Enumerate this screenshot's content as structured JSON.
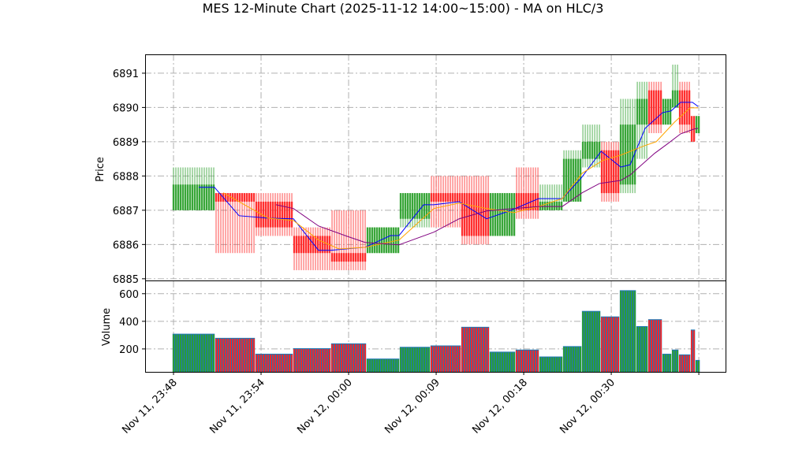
{
  "chart_data": {
    "type": "candlestick",
    "title": "MES 12-Minute Chart (2025-11-12 14:00~15:00) - MA on HLC/3",
    "ylabel": "Price",
    "volume_ylabel": "Volume",
    "xlabel": "",
    "x_axis": "bar index",
    "xlim": [
      -12,
      233.3
    ],
    "ylim": [
      6884.95,
      6891.55
    ],
    "volume_ylim": [
      34,
      690
    ],
    "grid": true,
    "x_ticks": [
      {
        "index": 0,
        "label": "Nov 11, 23:48"
      },
      {
        "index": 37,
        "label": "Nov 11, 23:54"
      },
      {
        "index": 74,
        "label": "Nov 12, 00:00"
      },
      {
        "index": 111,
        "label": "Nov 12, 00:09"
      },
      {
        "index": 148,
        "label": "Nov 12, 00:18"
      },
      {
        "index": 185,
        "label": "Nov 12, 00:30"
      },
      {
        "index": 222,
        "label": ""
      }
    ],
    "y_ticks": [
      6885,
      6886,
      6887,
      6888,
      6889,
      6890,
      6891
    ],
    "volume_ticks": [
      200,
      400,
      600
    ],
    "colors": {
      "up": "#2ca02c",
      "down": "#ff2222",
      "volume_base": "#1f77b4",
      "ma_fast": "#0000ff",
      "ma_mid": "#ffa500",
      "ma_slow": "#800080"
    },
    "candles": [
      {
        "start": 0,
        "end": 17,
        "o": 6887.0,
        "h": 6888.25,
        "l": 6887.0,
        "c": 6887.75,
        "v": 310
      },
      {
        "start": 18,
        "end": 34,
        "o": 6887.5,
        "h": 6887.5,
        "l": 6885.75,
        "c": 6887.25,
        "v": 280
      },
      {
        "start": 35,
        "end": 50,
        "o": 6887.25,
        "h": 6887.5,
        "l": 6886.25,
        "c": 6886.5,
        "v": 165
      },
      {
        "start": 51,
        "end": 66,
        "o": 6886.25,
        "h": 6886.5,
        "l": 6885.25,
        "c": 6885.75,
        "v": 205
      },
      {
        "start": 67,
        "end": 81,
        "o": 6885.75,
        "h": 6887.0,
        "l": 6885.25,
        "c": 6885.5,
        "v": 240
      },
      {
        "start": 82,
        "end": 95,
        "o": 6885.75,
        "h": 6886.5,
        "l": 6885.75,
        "c": 6886.5,
        "v": 130
      },
      {
        "start": 96,
        "end": 108,
        "o": 6886.75,
        "h": 6887.5,
        "l": 6886.5,
        "c": 6887.5,
        "v": 215
      },
      {
        "start": 109,
        "end": 121,
        "o": 6887.5,
        "h": 6888.0,
        "l": 6886.5,
        "c": 6887.25,
        "v": 225
      },
      {
        "start": 122,
        "end": 133,
        "o": 6887.5,
        "h": 6888.0,
        "l": 6886.0,
        "c": 6886.25,
        "v": 360
      },
      {
        "start": 134,
        "end": 144,
        "o": 6886.25,
        "h": 6887.5,
        "l": 6886.25,
        "c": 6887.5,
        "v": 180
      },
      {
        "start": 145,
        "end": 154,
        "o": 6887.5,
        "h": 6888.25,
        "l": 6886.75,
        "c": 6887.0,
        "v": 195
      },
      {
        "start": 155,
        "end": 164,
        "o": 6887.0,
        "h": 6887.75,
        "l": 6887.0,
        "c": 6887.25,
        "v": 145
      },
      {
        "start": 165,
        "end": 172,
        "o": 6887.25,
        "h": 6888.75,
        "l": 6887.25,
        "c": 6888.5,
        "v": 220
      },
      {
        "start": 173,
        "end": 180,
        "o": 6888.5,
        "h": 6889.5,
        "l": 6888.25,
        "c": 6889.0,
        "v": 475
      },
      {
        "start": 181,
        "end": 188,
        "o": 6888.75,
        "h": 6889.0,
        "l": 6887.25,
        "c": 6887.5,
        "v": 435
      },
      {
        "start": 189,
        "end": 195,
        "o": 6887.75,
        "h": 6890.25,
        "l": 6887.5,
        "c": 6889.5,
        "v": 625
      },
      {
        "start": 196,
        "end": 200,
        "o": 6889.5,
        "h": 6890.75,
        "l": 6888.5,
        "c": 6890.25,
        "v": 365
      },
      {
        "start": 201,
        "end": 206,
        "o": 6890.5,
        "h": 6890.75,
        "l": 6889.25,
        "c": 6889.5,
        "v": 415
      },
      {
        "start": 207,
        "end": 210,
        "o": 6889.5,
        "h": 6890.25,
        "l": 6889.5,
        "c": 6890.25,
        "v": 165
      },
      {
        "start": 211,
        "end": 213,
        "o": 6890.0,
        "h": 6891.25,
        "l": 6890.0,
        "c": 6890.5,
        "v": 195
      },
      {
        "start": 214,
        "end": 218,
        "o": 6890.5,
        "h": 6890.75,
        "l": 6889.25,
        "c": 6889.5,
        "v": 160
      },
      {
        "start": 219,
        "end": 220,
        "o": 6889.75,
        "h": 6889.75,
        "l": 6889.0,
        "c": 6889.0,
        "v": 340
      },
      {
        "start": 221,
        "end": 222,
        "o": 6889.25,
        "h": 6889.75,
        "l": 6889.25,
        "c": 6889.75,
        "v": 120
      }
    ],
    "series": [
      {
        "color": "#0000ff",
        "points": [
          [
            10.7,
            6887.67
          ],
          [
            17.3,
            6887.67
          ],
          [
            27.7,
            6886.84
          ],
          [
            40,
            6886.77
          ],
          [
            50.7,
            6886.75
          ],
          [
            61.3,
            6885.83
          ],
          [
            66.3,
            6885.83
          ],
          [
            81,
            6885.92
          ],
          [
            91.7,
            6886.26
          ],
          [
            95.3,
            6886.26
          ],
          [
            105.7,
            6887.16
          ],
          [
            110,
            6887.16
          ],
          [
            120.7,
            6887.25
          ],
          [
            132.3,
            6886.75
          ],
          [
            142.7,
            6887.0
          ],
          [
            154.3,
            6887.34
          ],
          [
            164.3,
            6887.34
          ],
          [
            172.3,
            6887.94
          ],
          [
            180.7,
            6888.72
          ],
          [
            189,
            6888.26
          ],
          [
            193,
            6888.33
          ],
          [
            199.3,
            6889.39
          ],
          [
            206.7,
            6889.85
          ],
          [
            210.3,
            6889.9
          ],
          [
            214.3,
            6890.15
          ],
          [
            219.3,
            6890.15
          ],
          [
            221.7,
            6890.03
          ]
        ]
      },
      {
        "color": "#ffa500",
        "points": [
          [
            21,
            6887.51
          ],
          [
            40,
            6886.77
          ],
          [
            50.7,
            6886.7
          ],
          [
            61.3,
            6886.13
          ],
          [
            70,
            6885.87
          ],
          [
            81,
            6885.92
          ],
          [
            95.3,
            6886.13
          ],
          [
            110,
            6887.05
          ],
          [
            120.7,
            6887.21
          ],
          [
            132.3,
            6887.05
          ],
          [
            144,
            6886.93
          ],
          [
            154.3,
            6887.11
          ],
          [
            164.3,
            6887.34
          ],
          [
            172.7,
            6888.08
          ],
          [
            181.3,
            6888.45
          ],
          [
            189,
            6888.61
          ],
          [
            199.3,
            6888.89
          ],
          [
            204,
            6889.0
          ],
          [
            211.7,
            6889.57
          ],
          [
            218.3,
            6889.99
          ],
          [
            221.7,
            6889.99
          ]
        ]
      },
      {
        "color": "#800080",
        "points": [
          [
            43.3,
            6887.16
          ],
          [
            50.7,
            6887.05
          ],
          [
            61.3,
            6886.54
          ],
          [
            73.3,
            6886.24
          ],
          [
            81,
            6886.06
          ],
          [
            95.3,
            6885.99
          ],
          [
            110,
            6886.36
          ],
          [
            120.7,
            6886.75
          ],
          [
            132.3,
            6886.98
          ],
          [
            154.3,
            6887.11
          ],
          [
            164.3,
            6887.11
          ],
          [
            172.7,
            6887.51
          ],
          [
            180,
            6887.78
          ],
          [
            189,
            6887.87
          ],
          [
            193,
            6888.03
          ],
          [
            203.3,
            6888.66
          ],
          [
            209,
            6888.95
          ],
          [
            214.3,
            6889.23
          ],
          [
            220,
            6889.37
          ],
          [
            221.7,
            6889.39
          ]
        ]
      }
    ]
  }
}
